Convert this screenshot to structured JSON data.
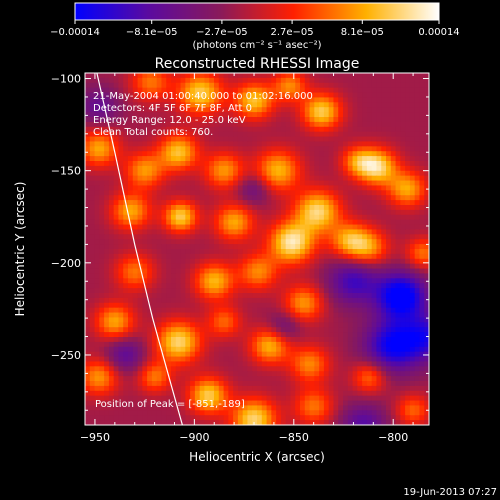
{
  "chart_data": {
    "type": "heatmap",
    "title": "Reconstructed RHESSI Image",
    "xlabel": "Heliocentric X (arcsec)",
    "ylabel": "Heliocentric Y (arcsec)",
    "xlim": [
      -955,
      -782
    ],
    "ylim": [
      -288,
      -97
    ],
    "x_ticks": [
      -950,
      -900,
      -850,
      -800
    ],
    "y_ticks": [
      -100,
      -150,
      -200,
      -250
    ],
    "x_tick_labels": [
      "−950",
      "−900",
      "−850",
      "−800"
    ],
    "y_tick_labels": [
      "−100",
      "−150",
      "−200",
      "−250"
    ],
    "colorbar": {
      "range": [
        -0.00014,
        0.00014
      ],
      "tick_values": [
        -0.00014,
        -8.1e-05,
        -2.7e-05,
        2.7e-05,
        8.1e-05,
        0.00014
      ],
      "tick_labels": [
        "−0.00014",
        "−8.1e−05",
        "−2.7e−05",
        "2.7e−05",
        "8.1e−05",
        "0.00014"
      ],
      "unit_label": "(photons cm⁻² s⁻¹ asec⁻²)",
      "colors": [
        "#0000ff",
        "#5a0aa0",
        "#8a1a5a",
        "#ff2000",
        "#ffb000",
        "#ffffff"
      ]
    },
    "annotations": [
      "21-May-2004 01:00:40.000 to 01:02:16.000",
      "Detectors: 4F 5F 6F 7F 8F, Att 0",
      "Energy Range: 12.0 - 25.0 keV",
      "Clean    Total counts: 760."
    ],
    "peak_label": "Position of Peak = [-851,-189]",
    "peak": [
      -851,
      -189
    ],
    "limb_curve": [
      [
        -949,
        -97
      ],
      [
        -940,
        -140
      ],
      [
        -930,
        -190
      ],
      [
        -921,
        -230
      ],
      [
        -912,
        -265
      ],
      [
        -906,
        -288
      ]
    ],
    "sources": [
      {
        "x": -948,
        "y": -138,
        "amp": 0.7,
        "sigma": 7
      },
      {
        "x": -922,
        "y": -102,
        "amp": 0.55,
        "sigma": 7
      },
      {
        "x": -897,
        "y": -108,
        "amp": 0.85,
        "sigma": 8
      },
      {
        "x": -870,
        "y": -112,
        "amp": 0.8,
        "sigma": 7
      },
      {
        "x": -852,
        "y": -104,
        "amp": 0.6,
        "sigma": 6
      },
      {
        "x": -836,
        "y": -118,
        "amp": 0.85,
        "sigma": 7
      },
      {
        "x": -818,
        "y": -145,
        "amp": 0.55,
        "sigma": 6
      },
      {
        "x": -808,
        "y": -148,
        "amp": 0.9,
        "sigma": 7
      },
      {
        "x": -793,
        "y": -160,
        "amp": 0.7,
        "sigma": 7
      },
      {
        "x": -785,
        "y": -195,
        "amp": 0.55,
        "sigma": 6
      },
      {
        "x": -948,
        "y": -115,
        "amp": -0.4,
        "sigma": 7
      },
      {
        "x": -925,
        "y": -150,
        "amp": 0.65,
        "sigma": 7
      },
      {
        "x": -908,
        "y": -140,
        "amp": 0.8,
        "sigma": 7
      },
      {
        "x": -885,
        "y": -150,
        "amp": 0.65,
        "sigma": 7
      },
      {
        "x": -858,
        "y": -150,
        "amp": 0.75,
        "sigma": 8
      },
      {
        "x": -838,
        "y": -172,
        "amp": 0.9,
        "sigma": 8
      },
      {
        "x": -822,
        "y": -188,
        "amp": 0.7,
        "sigma": 7
      },
      {
        "x": -932,
        "y": -172,
        "amp": 0.7,
        "sigma": 7
      },
      {
        "x": -907,
        "y": -175,
        "amp": 0.85,
        "sigma": 6
      },
      {
        "x": -880,
        "y": -178,
        "amp": 0.7,
        "sigma": 7
      },
      {
        "x": -851,
        "y": -189,
        "amp": 1.0,
        "sigma": 8
      },
      {
        "x": -812,
        "y": -192,
        "amp": 0.6,
        "sigma": 7
      },
      {
        "x": -930,
        "y": -205,
        "amp": 0.55,
        "sigma": 7
      },
      {
        "x": -890,
        "y": -210,
        "amp": 0.75,
        "sigma": 7
      },
      {
        "x": -868,
        "y": -205,
        "amp": 0.6,
        "sigma": 7
      },
      {
        "x": -845,
        "y": -222,
        "amp": 0.65,
        "sigma": 7
      },
      {
        "x": -820,
        "y": -210,
        "amp": -0.6,
        "sigma": 9
      },
      {
        "x": -796,
        "y": -218,
        "amp": -1.0,
        "sigma": 9
      },
      {
        "x": -800,
        "y": -245,
        "amp": -0.85,
        "sigma": 10
      },
      {
        "x": -782,
        "y": -240,
        "amp": -0.6,
        "sigma": 9
      },
      {
        "x": -940,
        "y": -232,
        "amp": 0.7,
        "sigma": 7
      },
      {
        "x": -908,
        "y": -243,
        "amp": 0.9,
        "sigma": 8
      },
      {
        "x": -885,
        "y": -232,
        "amp": 0.5,
        "sigma": 6
      },
      {
        "x": -862,
        "y": -245,
        "amp": 0.75,
        "sigma": 7
      },
      {
        "x": -842,
        "y": -255,
        "amp": 0.6,
        "sigma": 7
      },
      {
        "x": -948,
        "y": -262,
        "amp": 0.65,
        "sigma": 7
      },
      {
        "x": -920,
        "y": -262,
        "amp": 0.55,
        "sigma": 6
      },
      {
        "x": -893,
        "y": -272,
        "amp": 0.85,
        "sigma": 7
      },
      {
        "x": -870,
        "y": -285,
        "amp": 0.9,
        "sigma": 8
      },
      {
        "x": -840,
        "y": -278,
        "amp": 0.55,
        "sigma": 7
      },
      {
        "x": -812,
        "y": -262,
        "amp": 0.55,
        "sigma": 6
      },
      {
        "x": -790,
        "y": -280,
        "amp": 0.5,
        "sigma": 6
      },
      {
        "x": -815,
        "y": -288,
        "amp": -0.5,
        "sigma": 8
      },
      {
        "x": -935,
        "y": -250,
        "amp": -0.45,
        "sigma": 7
      },
      {
        "x": -870,
        "y": -160,
        "amp": -0.35,
        "sigma": 6
      },
      {
        "x": -855,
        "y": -235,
        "amp": -0.35,
        "sigma": 6
      }
    ]
  },
  "footer": {
    "timestamp": "19-Jun-2013 07:27"
  }
}
